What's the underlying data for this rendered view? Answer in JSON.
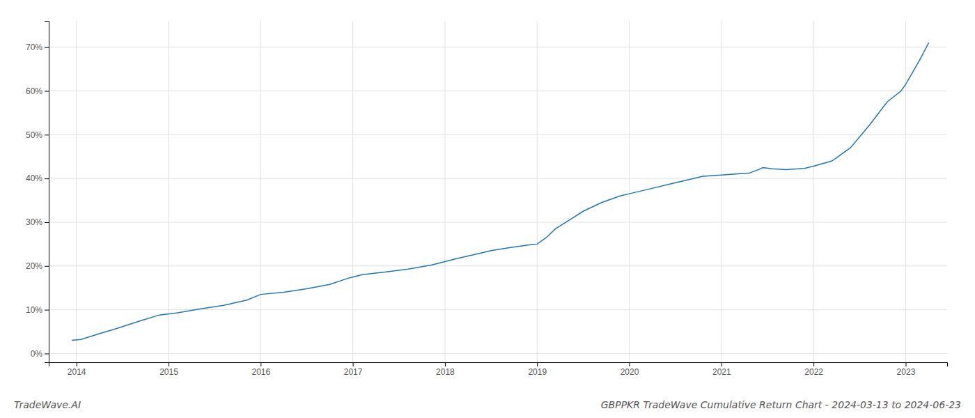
{
  "chart_data": {
    "type": "line",
    "title": "GBPPKR TradeWave Cumulative Return Chart - 2024-03-13 to 2024-06-23",
    "annotations": [
      "TradeWave.AI"
    ],
    "x": [
      2013.95,
      2014.05,
      2014.2,
      2014.45,
      2014.7,
      2014.9,
      2015.1,
      2015.35,
      2015.6,
      2015.85,
      2016.0,
      2016.25,
      2016.5,
      2016.75,
      2016.95,
      2017.1,
      2017.35,
      2017.6,
      2017.85,
      2018.0,
      2018.15,
      2018.3,
      2018.5,
      2018.7,
      2018.9,
      2019.0,
      2019.1,
      2019.2,
      2019.35,
      2019.5,
      2019.7,
      2019.9,
      2020.0,
      2020.2,
      2020.4,
      2020.6,
      2020.8,
      2021.0,
      2021.15,
      2021.3,
      2021.4,
      2021.45,
      2021.55,
      2021.7,
      2021.9,
      2022.0,
      2022.2,
      2022.4,
      2022.6,
      2022.8,
      2022.95,
      2023.0,
      2023.15,
      2023.25
    ],
    "values": [
      3.0,
      3.2,
      4.2,
      5.8,
      7.5,
      8.8,
      9.3,
      10.2,
      11.0,
      12.2,
      13.5,
      14.0,
      14.8,
      15.8,
      17.2,
      18.0,
      18.6,
      19.3,
      20.2,
      21.0,
      21.8,
      22.5,
      23.5,
      24.2,
      24.8,
      25.0,
      26.5,
      28.5,
      30.5,
      32.5,
      34.5,
      36.0,
      36.5,
      37.5,
      38.5,
      39.5,
      40.5,
      40.8,
      41.0,
      41.2,
      42.0,
      42.5,
      42.2,
      42.0,
      42.3,
      42.8,
      44.0,
      47.0,
      52.0,
      57.5,
      60.0,
      61.5,
      67.0,
      71.0
    ],
    "color": "#1f77b4",
    "xlim": [
      2013.7,
      2023.45
    ],
    "ylim": [
      -2,
      76
    ],
    "xticks": [
      2014,
      2015,
      2016,
      2017,
      2018,
      2019,
      2020,
      2021,
      2022,
      2023
    ],
    "yticks": [
      {
        "value": 0,
        "label": "0%"
      },
      {
        "value": 10,
        "label": "10%"
      },
      {
        "value": 20,
        "label": "20%"
      },
      {
        "value": 30,
        "label": "30%"
      },
      {
        "value": 40,
        "label": "40%"
      },
      {
        "value": 50,
        "label": "50%"
      },
      {
        "value": 60,
        "label": "60%"
      },
      {
        "value": 70,
        "label": "70%"
      }
    ],
    "grid": true
  }
}
